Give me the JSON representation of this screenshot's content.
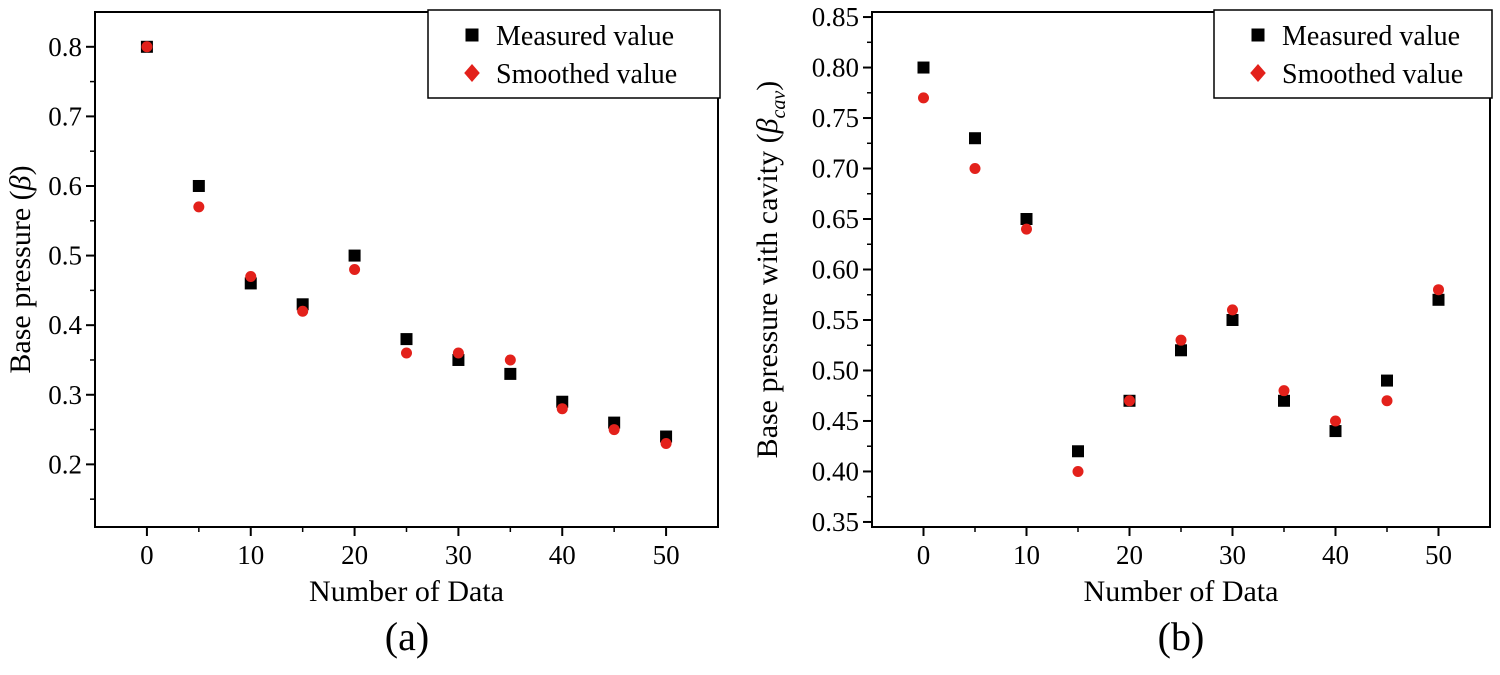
{
  "figure": {
    "background": "#ffffff",
    "panel_labels": [
      "(a)",
      "(b)"
    ]
  },
  "colors": {
    "axis": "#000000",
    "measured": "#000000",
    "smoothed": "#e3211b"
  },
  "chart_data": [
    {
      "type": "scatter",
      "panel": "a",
      "title": "",
      "xlabel": "Number of Data",
      "ylabel": {
        "pre": "Base pressure (",
        "symbol": "β",
        "sub": "",
        "post": ")"
      },
      "xlim": [
        -5,
        55
      ],
      "ylim": [
        0.11,
        0.85
      ],
      "xticks": [
        "0",
        "10",
        "20",
        "30",
        "40",
        "50"
      ],
      "yticks": [
        "0.2",
        "0.3",
        "0.4",
        "0.5",
        "0.6",
        "0.7",
        "0.8"
      ],
      "grid": false,
      "legend_position": "top-right",
      "x": [
        0,
        5,
        10,
        15,
        20,
        25,
        30,
        35,
        40,
        45,
        50
      ],
      "series": [
        {
          "name": "Measured value",
          "marker": "square",
          "color": "#000000",
          "values": [
            0.8,
            0.6,
            0.46,
            0.43,
            0.5,
            0.38,
            0.35,
            0.33,
            0.29,
            0.26,
            0.24
          ]
        },
        {
          "name": "Smoothed value",
          "marker": "circle",
          "legend_marker": "diamond",
          "color": "#e3211b",
          "values": [
            0.8,
            0.57,
            0.47,
            0.42,
            0.48,
            0.36,
            0.36,
            0.35,
            0.28,
            0.25,
            0.23
          ]
        }
      ]
    },
    {
      "type": "scatter",
      "panel": "b",
      "title": "",
      "xlabel": "Number of Data",
      "ylabel": {
        "pre": "Base pressure with cavity (",
        "symbol": "β",
        "sub": "cav",
        "post": ")"
      },
      "xlim": [
        -5,
        55
      ],
      "ylim": [
        0.345,
        0.855
      ],
      "xticks": [
        "0",
        "10",
        "20",
        "30",
        "40",
        "50"
      ],
      "yticks": [
        "0.35",
        "0.40",
        "0.45",
        "0.50",
        "0.55",
        "0.60",
        "0.65",
        "0.70",
        "0.75",
        "0.80",
        "0.85"
      ],
      "grid": false,
      "legend_position": "top-right",
      "x": [
        0,
        5,
        10,
        15,
        20,
        25,
        30,
        35,
        40,
        45,
        50
      ],
      "series": [
        {
          "name": "Measured value",
          "marker": "square",
          "color": "#000000",
          "values": [
            0.8,
            0.73,
            0.65,
            0.42,
            0.47,
            0.52,
            0.55,
            0.47,
            0.44,
            0.49,
            0.57
          ]
        },
        {
          "name": "Smoothed value",
          "marker": "circle",
          "legend_marker": "diamond",
          "color": "#e3211b",
          "values": [
            0.77,
            0.7,
            0.64,
            0.4,
            0.47,
            0.53,
            0.56,
            0.48,
            0.45,
            0.47,
            0.58
          ]
        }
      ]
    }
  ]
}
